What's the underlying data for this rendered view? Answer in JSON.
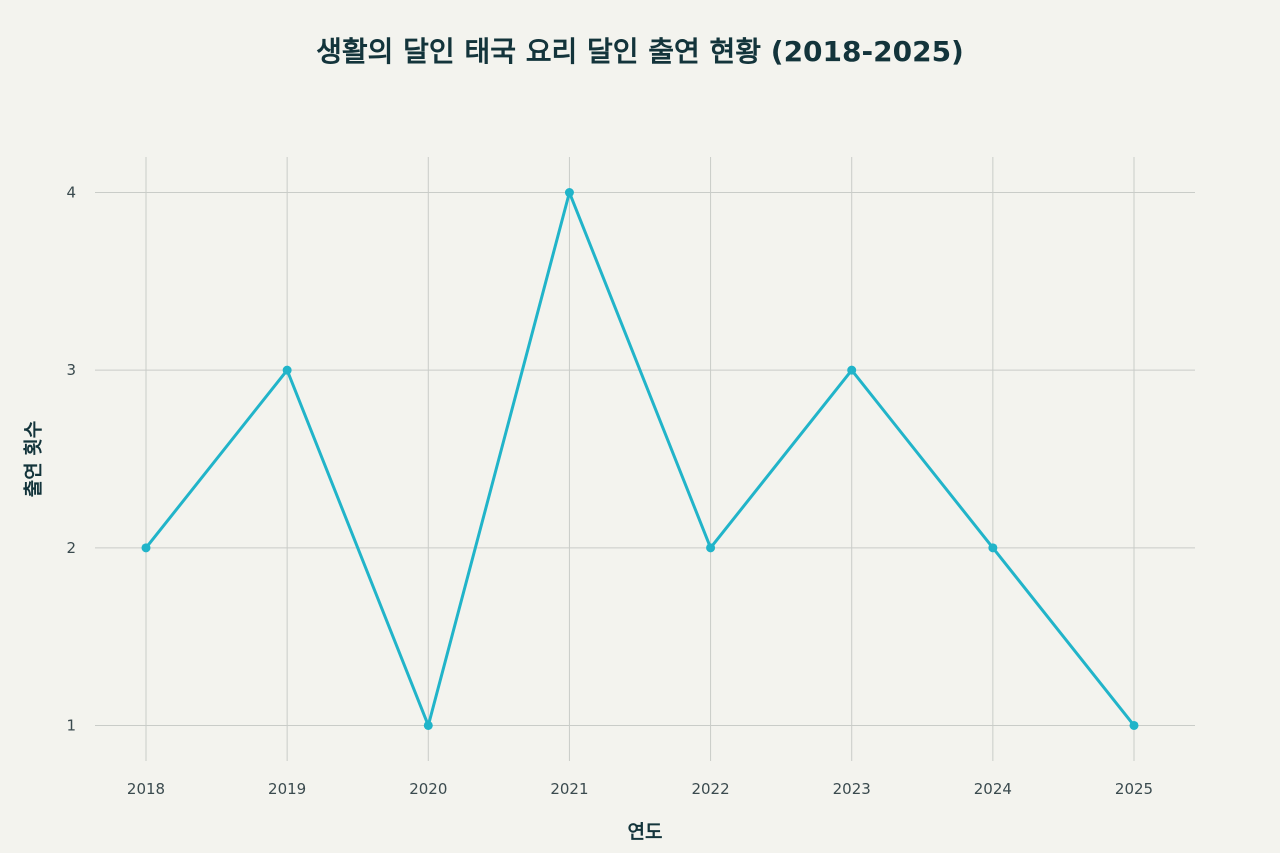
{
  "chart_data": {
    "type": "line",
    "title": "생활의 달인 태국 요리 달인 출연 현황 (2018-2025)",
    "xlabel": "연도",
    "ylabel": "출연 횟수",
    "x": [
      "2018",
      "2019",
      "2020",
      "2021",
      "2022",
      "2023",
      "2024",
      "2025"
    ],
    "series": [
      {
        "values": [
          2,
          3,
          1,
          4,
          2,
          3,
          2,
          1
        ]
      }
    ],
    "yticks": [
      1,
      2,
      3,
      4
    ],
    "ylim": [
      0.8,
      4.2
    ],
    "grid": true,
    "legend": "none",
    "line_color": "#21b4c9",
    "background": "#f3f3ee"
  }
}
